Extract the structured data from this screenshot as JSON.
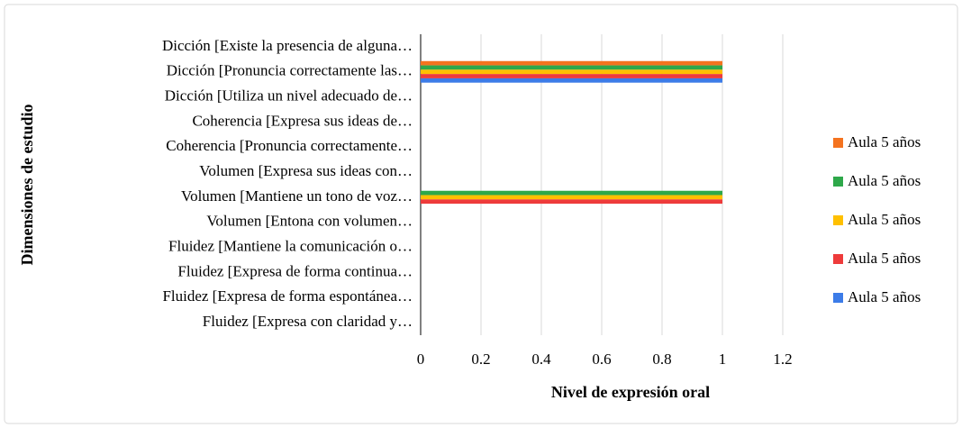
{
  "chart_data": {
    "type": "hbar",
    "x_label": "Nivel de expresión oral",
    "y_label": "Dimensiones de estudio",
    "categories": [
      "Dicción [Existe la presencia de alguna…",
      "Dicción [Pronuncia correctamente las…",
      "Dicción [Utiliza un nivel adecuado de…",
      "Coherencia [Expresa sus ideas de…",
      "Coherencia [Pronuncia correctamente…",
      "Volumen [Expresa sus ideas con…",
      "Volumen [Mantiene un tono de voz…",
      "Volumen [Entona con volumen…",
      "Fluidez [Mantiene la comunicación o…",
      "Fluidez [Expresa de forma continua…",
      "Fluidez [Expresa de forma espontánea…",
      "Fluidez [Expresa con claridad y…"
    ],
    "series": [
      {
        "name": "Aula 5 años",
        "color": "#f4731f",
        "values": [
          0,
          1,
          0,
          0,
          0,
          0,
          0,
          0,
          0,
          0,
          0,
          0
        ]
      },
      {
        "name": "Aula 5 años",
        "color": "#2ea84a",
        "values": [
          0,
          1,
          0,
          0,
          0,
          0,
          1,
          0,
          0,
          0,
          0,
          0
        ]
      },
      {
        "name": "Aula 5 años",
        "color": "#ffc000",
        "values": [
          0,
          1,
          0,
          0,
          0,
          0,
          1,
          0,
          0,
          0,
          0,
          0
        ]
      },
      {
        "name": "Aula 5 años",
        "color": "#ee3b3b",
        "values": [
          0,
          1,
          0,
          0,
          0,
          0,
          1,
          0,
          0,
          0,
          0,
          0
        ]
      },
      {
        "name": "Aula 5 años",
        "color": "#3c7ce8",
        "values": [
          0,
          1,
          0,
          0,
          0,
          0,
          0,
          0,
          0,
          0,
          0,
          0
        ]
      }
    ],
    "xlim": [
      0,
      1.2
    ],
    "xticks": [
      0,
      0.2,
      0.4,
      0.6,
      0.8,
      1,
      1.2
    ],
    "grid": true,
    "legend": "right"
  }
}
